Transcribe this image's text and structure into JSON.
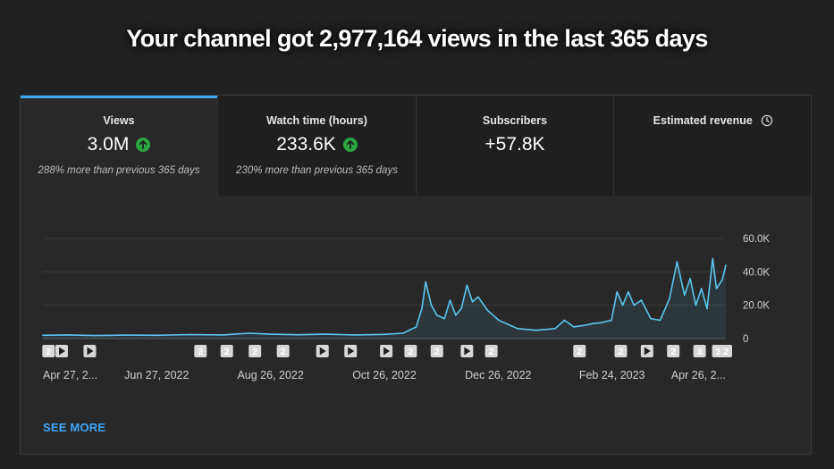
{
  "headline": "Your channel got 2,977,164 views in the last 365 days",
  "tabs": [
    {
      "title": "Views",
      "value": "3.0M",
      "trend_icon": "arrow-up-circle-icon",
      "subtitle": "288% more than previous 365 days"
    },
    {
      "title": "Watch time (hours)",
      "value": "233.6K",
      "trend_icon": "arrow-up-circle-icon",
      "subtitle": "230% more than previous 365 days"
    },
    {
      "title": "Subscribers",
      "value": "+57.8K",
      "subtitle": ""
    },
    {
      "title": "Estimated revenue",
      "value": "",
      "subtitle": "",
      "icon": "clock-icon"
    }
  ],
  "colors": {
    "accent": "#3ea6ff",
    "line": "#5bc6ef",
    "trend_up": "#2ba640",
    "background": "#212121",
    "card": "#282828"
  },
  "chart_data": {
    "type": "line",
    "y_ticks": [
      "60.0K",
      "40.0K",
      "20.0K",
      "0"
    ],
    "ylim": [
      0,
      60000
    ],
    "x_tick_labels": [
      "Apr 27, 2...",
      "Jun 27, 2022",
      "Aug 26, 2022",
      "Oct 26, 2022",
      "Dec 26, 2022",
      "Feb 24, 2023",
      "Apr 26, 2..."
    ],
    "xlim": [
      "2022-04-27",
      "2023-04-26"
    ],
    "series": [
      {
        "points": [
          [
            "2022-04-27",
            2000
          ],
          [
            "2022-05-10",
            2200
          ],
          [
            "2022-05-25",
            1800
          ],
          [
            "2022-06-10",
            2100
          ],
          [
            "2022-06-27",
            2000
          ],
          [
            "2022-07-15",
            2400
          ],
          [
            "2022-08-01",
            2200
          ],
          [
            "2022-08-15",
            3200
          ],
          [
            "2022-08-26",
            2600
          ],
          [
            "2022-09-10",
            2300
          ],
          [
            "2022-09-25",
            2600
          ],
          [
            "2022-10-10",
            2200
          ],
          [
            "2022-10-26",
            2500
          ],
          [
            "2022-11-05",
            3200
          ],
          [
            "2022-11-12",
            7000
          ],
          [
            "2022-11-15",
            18000
          ],
          [
            "2022-11-17",
            34000
          ],
          [
            "2022-11-20",
            20000
          ],
          [
            "2022-11-23",
            14000
          ],
          [
            "2022-11-27",
            12000
          ],
          [
            "2022-11-30",
            23000
          ],
          [
            "2022-12-03",
            14000
          ],
          [
            "2022-12-06",
            18000
          ],
          [
            "2022-12-09",
            32000
          ],
          [
            "2022-12-12",
            22000
          ],
          [
            "2022-12-15",
            25000
          ],
          [
            "2022-12-20",
            17000
          ],
          [
            "2022-12-26",
            11000
          ],
          [
            "2023-01-05",
            6000
          ],
          [
            "2023-01-15",
            5000
          ],
          [
            "2023-01-25",
            6000
          ],
          [
            "2023-01-30",
            11000
          ],
          [
            "2023-02-04",
            7000
          ],
          [
            "2023-02-10",
            8000
          ],
          [
            "2023-02-14",
            9000
          ],
          [
            "2023-02-18",
            9500
          ],
          [
            "2023-02-24",
            11000
          ],
          [
            "2023-02-27",
            28000
          ],
          [
            "2023-03-02",
            20000
          ],
          [
            "2023-03-05",
            28000
          ],
          [
            "2023-03-08",
            20000
          ],
          [
            "2023-03-12",
            23000
          ],
          [
            "2023-03-17",
            12000
          ],
          [
            "2023-03-22",
            11000
          ],
          [
            "2023-03-27",
            24000
          ],
          [
            "2023-03-31",
            46000
          ],
          [
            "2023-04-04",
            26000
          ],
          [
            "2023-04-07",
            36000
          ],
          [
            "2023-04-10",
            20000
          ],
          [
            "2023-04-13",
            30000
          ],
          [
            "2023-04-16",
            18000
          ],
          [
            "2023-04-19",
            48000
          ],
          [
            "2023-04-21",
            30000
          ],
          [
            "2023-04-24",
            35000
          ],
          [
            "2023-04-26",
            44000
          ]
        ]
      }
    ],
    "markers": [
      {
        "date": "2022-04-30",
        "type": "number",
        "label": "2"
      },
      {
        "date": "2022-05-07",
        "type": "play"
      },
      {
        "date": "2022-05-22",
        "type": "play"
      },
      {
        "date": "2022-07-20",
        "type": "number",
        "label": "2"
      },
      {
        "date": "2022-08-03",
        "type": "number",
        "label": "2"
      },
      {
        "date": "2022-08-18",
        "type": "number",
        "label": "2"
      },
      {
        "date": "2022-09-02",
        "type": "number",
        "label": "2"
      },
      {
        "date": "2022-09-23",
        "type": "play"
      },
      {
        "date": "2022-10-08",
        "type": "play"
      },
      {
        "date": "2022-10-27",
        "type": "play"
      },
      {
        "date": "2022-11-09",
        "type": "number",
        "label": "2"
      },
      {
        "date": "2022-11-23",
        "type": "number",
        "label": "2"
      },
      {
        "date": "2022-12-09",
        "type": "play"
      },
      {
        "date": "2022-12-22",
        "type": "number",
        "label": "2"
      },
      {
        "date": "2023-02-07",
        "type": "number",
        "label": "2"
      },
      {
        "date": "2023-03-01",
        "type": "number",
        "label": "2"
      },
      {
        "date": "2023-03-15",
        "type": "play"
      },
      {
        "date": "2023-03-29",
        "type": "number",
        "label": "2"
      },
      {
        "date": "2023-04-12",
        "type": "number",
        "label": "3"
      },
      {
        "date": "2023-04-22",
        "type": "number",
        "label": "3"
      },
      {
        "date": "2023-04-26",
        "type": "number",
        "label": "2"
      }
    ],
    "grid": true
  },
  "see_more": "SEE MORE"
}
